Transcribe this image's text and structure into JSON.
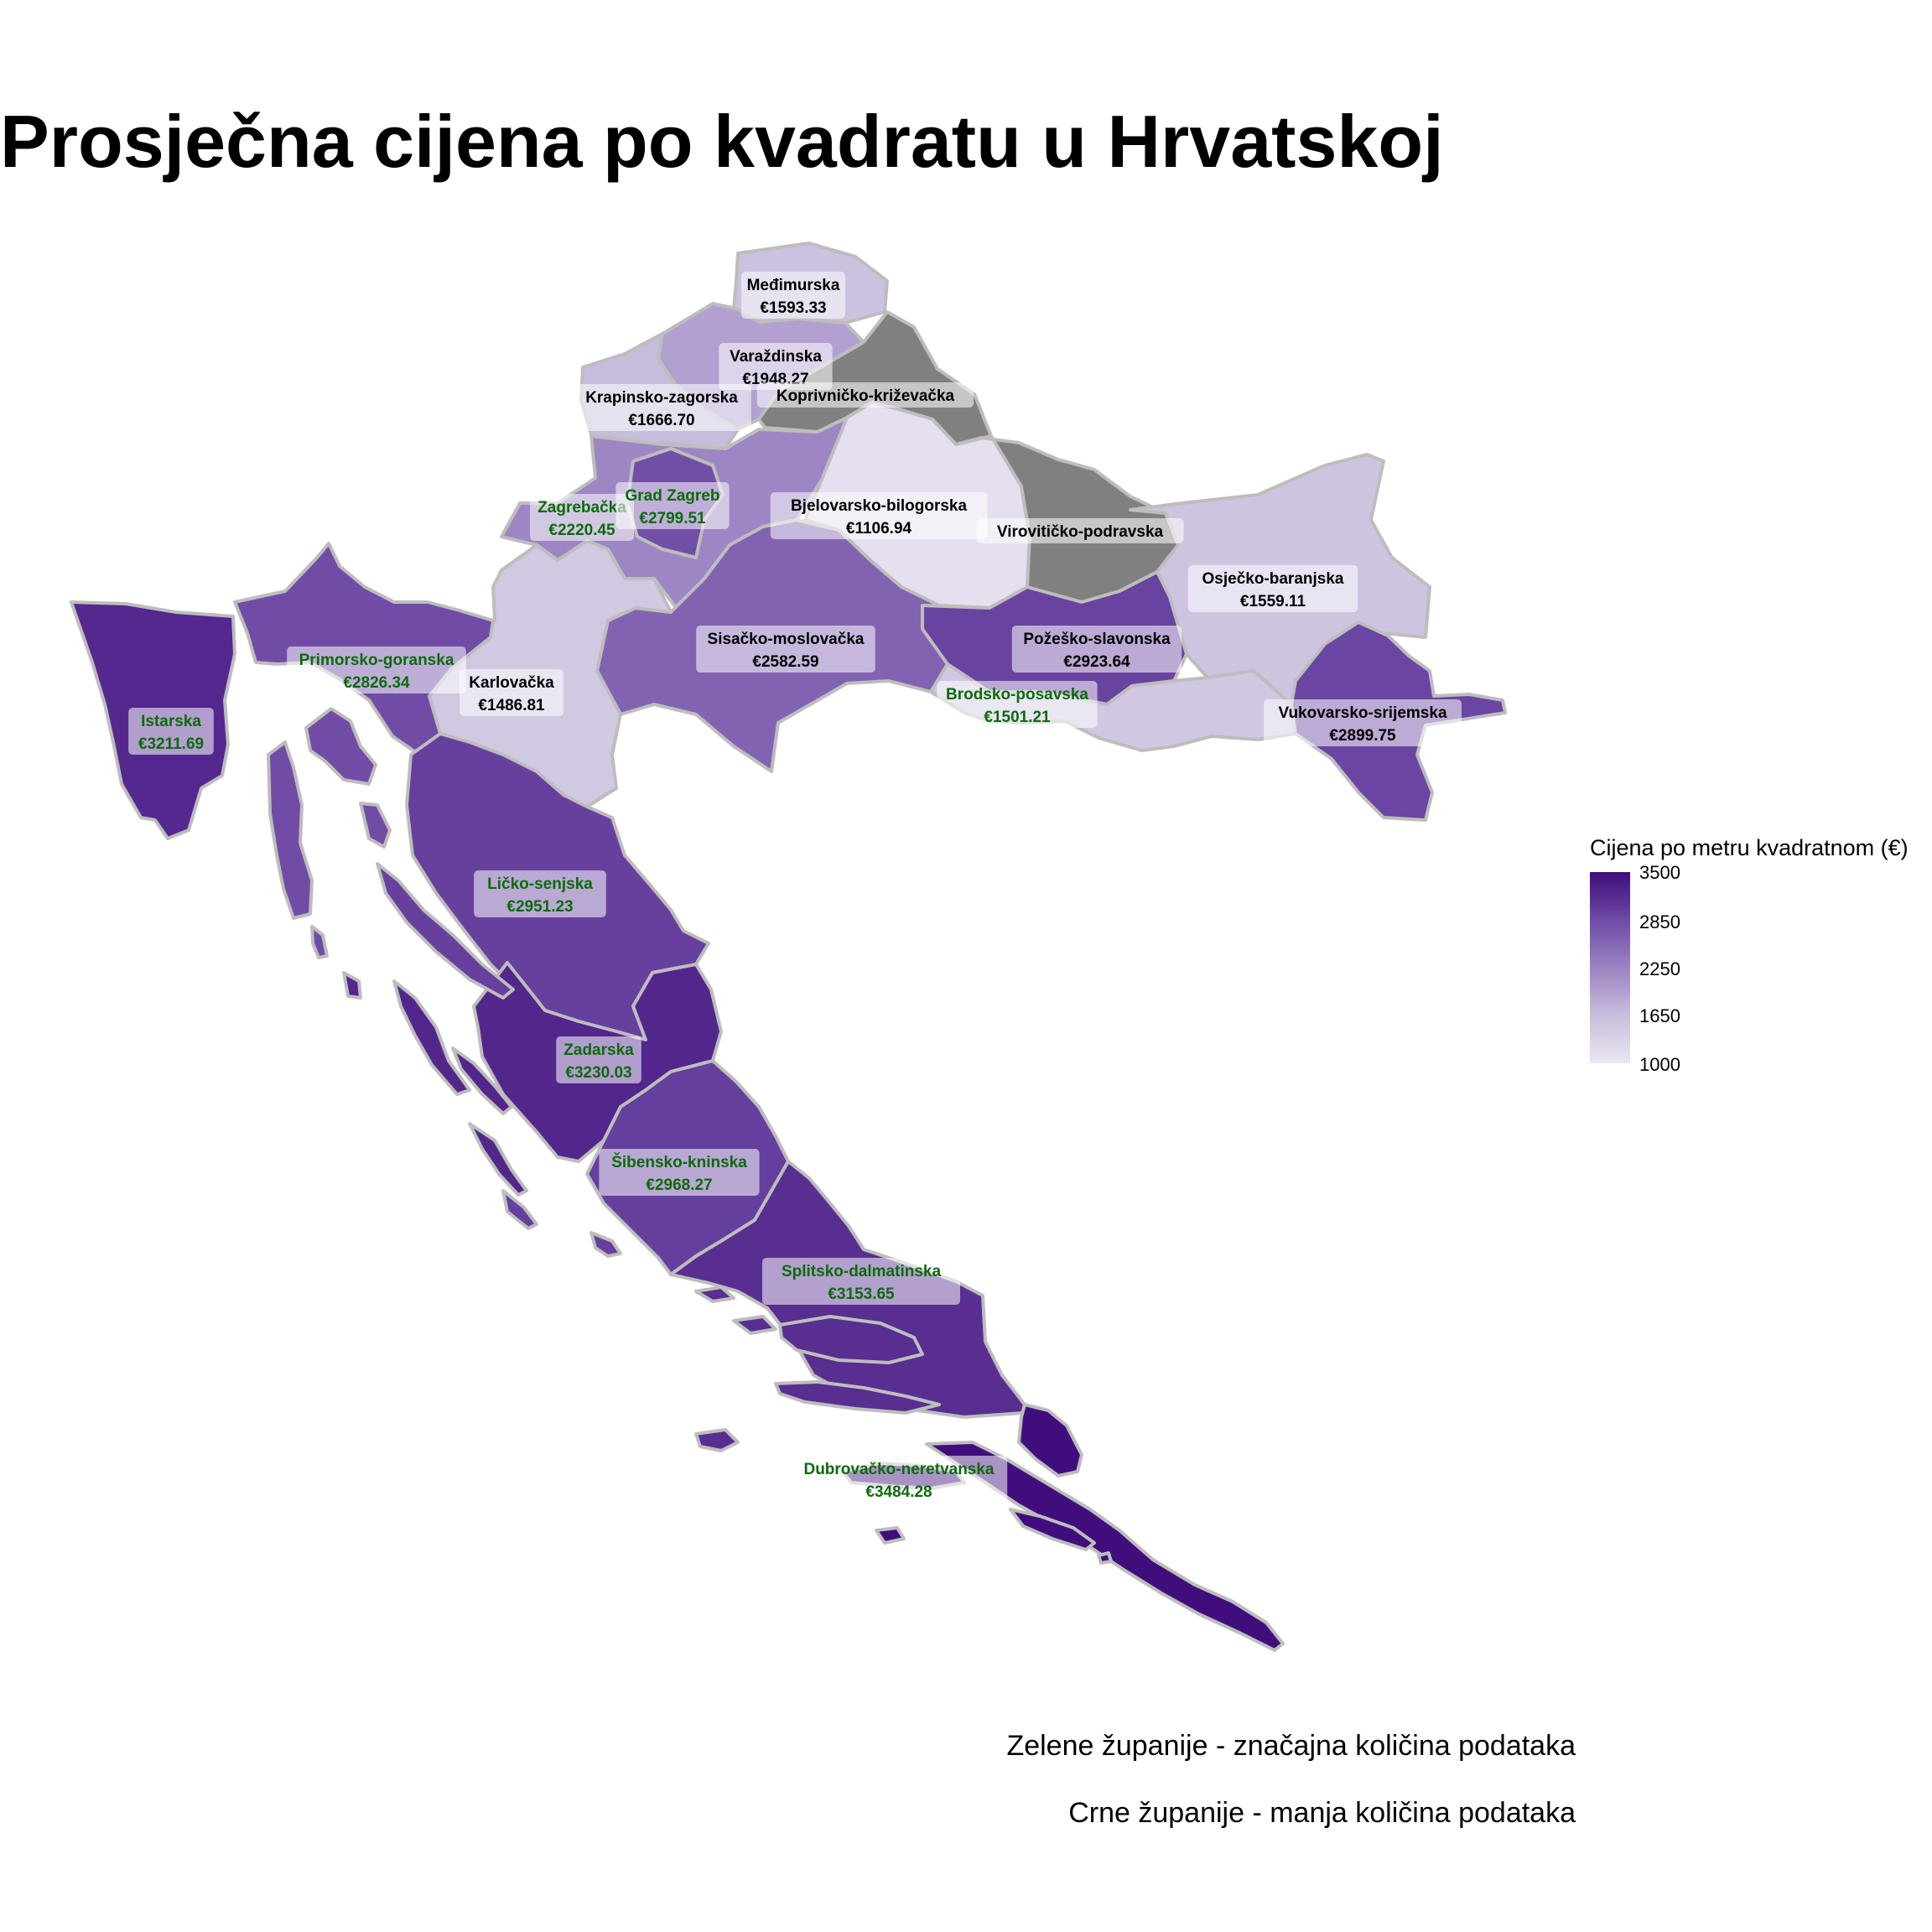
{
  "title": "Prosječna cijena po kvadratu u Hrvatskoj",
  "legend": {
    "title": "Cijena po metru kvadratnom (€)",
    "ticks": [
      "3500",
      "2850",
      "2250",
      "1650",
      "1000"
    ],
    "range": [
      1000,
      3500
    ],
    "colors": {
      "low": "#eae6f2",
      "high": "#3f0d7b",
      "missing": "#808080",
      "border": "#bdbdbd"
    }
  },
  "label_colors": {
    "significant": "#0b6b0b",
    "limited": "#000000"
  },
  "notes": {
    "green": "Zelene županije - značajna količina podataka",
    "black": "Crne županije - manja količina podataka"
  },
  "counties": [
    {
      "name": "Međimurska",
      "price_label": "€1593.33",
      "value": 1593.33,
      "significant": false
    },
    {
      "name": "Varaždinska",
      "price_label": "€1948.27",
      "value": 1948.27,
      "significant": false
    },
    {
      "name": "Krapinsko-zagorska",
      "price_label": "€1666.70",
      "value": 1666.7,
      "significant": false
    },
    {
      "name": "Koprivničko-križevačka",
      "price_label": "",
      "value": null,
      "significant": false
    },
    {
      "name": "Zagrebačka",
      "price_label": "€2220.45",
      "value": 2220.45,
      "significant": true
    },
    {
      "name": "Grad Zagreb",
      "price_label": "€2799.51",
      "value": 2799.51,
      "significant": true
    },
    {
      "name": "Bjelovarsko-bilogorska",
      "price_label": "€1106.94",
      "value": 1106.94,
      "significant": false
    },
    {
      "name": "Virovitičko-podravska",
      "price_label": "",
      "value": null,
      "significant": false
    },
    {
      "name": "Osječko-baranjska",
      "price_label": "€1559.11",
      "value": 1559.11,
      "significant": false
    },
    {
      "name": "Sisačko-moslovačka",
      "price_label": "€2582.59",
      "value": 2582.59,
      "significant": false
    },
    {
      "name": "Požeško-slavonska",
      "price_label": "€2923.64",
      "value": 2923.64,
      "significant": false
    },
    {
      "name": "Primorsko-goranska",
      "price_label": "€2826.34",
      "value": 2826.34,
      "significant": true
    },
    {
      "name": "Karlovačka",
      "price_label": "€1486.81",
      "value": 1486.81,
      "significant": false
    },
    {
      "name": "Brodsko-posavska",
      "price_label": "€1501.21",
      "value": 1501.21,
      "significant": true
    },
    {
      "name": "Vukovarsko-srijemska",
      "price_label": "€2899.75",
      "value": 2899.75,
      "significant": false
    },
    {
      "name": "Istarska",
      "price_label": "€3211.69",
      "value": 3211.69,
      "significant": true
    },
    {
      "name": "Ličko-senjska",
      "price_label": "€2951.23",
      "value": 2951.23,
      "significant": true
    },
    {
      "name": "Zadarska",
      "price_label": "€3230.03",
      "value": 3230.03,
      "significant": true
    },
    {
      "name": "Šibensko-kninska",
      "price_label": "€2968.27",
      "value": 2968.27,
      "significant": true
    },
    {
      "name": "Splitsko-dalmatinska",
      "price_label": "€3153.65",
      "value": 3153.65,
      "significant": true
    },
    {
      "name": "Dubrovačko-neretvanska",
      "price_label": "€3484.28",
      "value": 3484.28,
      "significant": true
    }
  ]
}
